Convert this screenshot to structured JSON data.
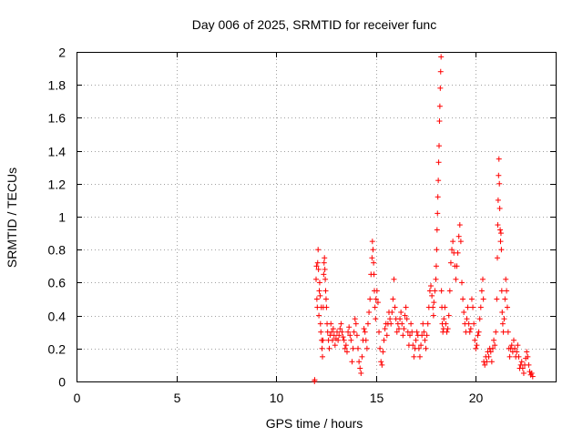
{
  "chart_data": {
    "type": "scatter",
    "title": "Day 006 of 2025, SRMTID for receiver func",
    "xlabel": "GPS time / hours",
    "ylabel": "SRMTID / TECUs",
    "xlim": [
      0,
      24
    ],
    "ylim": [
      0,
      2
    ],
    "xticks": [
      0,
      5,
      10,
      15,
      20
    ],
    "xtick_labels": [
      "0",
      "5",
      "10",
      "15",
      "20"
    ],
    "yticks": [
      0,
      0.2,
      0.4,
      0.6,
      0.8,
      1,
      1.2,
      1.4,
      1.6,
      1.8,
      2
    ],
    "ytick_labels": [
      "0",
      "0.2",
      "0.4",
      "0.6",
      "0.8",
      "1",
      "1.2",
      "1.4",
      "1.6",
      "1.8",
      "2"
    ],
    "grid": true,
    "marker": "plus",
    "color": "#ff0000",
    "series": [
      {
        "name": "SRMTID",
        "points": [
          [
            11.92,
            0.0
          ],
          [
            11.93,
            0.01
          ],
          [
            12.0,
            0.62
          ],
          [
            12.02,
            0.7
          ],
          [
            12.04,
            0.5
          ],
          [
            12.06,
            0.45
          ],
          [
            12.08,
            0.72
          ],
          [
            12.1,
            0.8
          ],
          [
            12.12,
            0.68
          ],
          [
            12.14,
            0.4
          ],
          [
            12.16,
            0.55
          ],
          [
            12.18,
            0.6
          ],
          [
            12.2,
            0.52
          ],
          [
            12.22,
            0.35
          ],
          [
            12.24,
            0.3
          ],
          [
            12.26,
            0.45
          ],
          [
            12.28,
            0.25
          ],
          [
            12.3,
            0.2
          ],
          [
            12.32,
            0.15
          ],
          [
            12.34,
            0.25
          ],
          [
            12.36,
            0.45
          ],
          [
            12.38,
            0.65
          ],
          [
            12.4,
            0.72
          ],
          [
            12.42,
            0.75
          ],
          [
            12.44,
            0.68
          ],
          [
            12.46,
            0.62
          ],
          [
            12.48,
            0.55
          ],
          [
            12.5,
            0.5
          ],
          [
            12.52,
            0.45
          ],
          [
            12.55,
            0.35
          ],
          [
            12.58,
            0.3
          ],
          [
            12.62,
            0.25
          ],
          [
            12.66,
            0.2
          ],
          [
            12.7,
            0.28
          ],
          [
            12.74,
            0.35
          ],
          [
            12.78,
            0.3
          ],
          [
            12.82,
            0.25
          ],
          [
            12.86,
            0.32
          ],
          [
            12.9,
            0.28
          ],
          [
            12.95,
            0.22
          ],
          [
            13.0,
            0.26
          ],
          [
            13.05,
            0.3
          ],
          [
            13.1,
            0.25
          ],
          [
            13.15,
            0.28
          ],
          [
            13.2,
            0.32
          ],
          [
            13.25,
            0.35
          ],
          [
            13.3,
            0.3
          ],
          [
            13.35,
            0.27
          ],
          [
            13.4,
            0.25
          ],
          [
            13.45,
            0.2
          ],
          [
            13.5,
            0.22
          ],
          [
            13.55,
            0.18
          ],
          [
            13.6,
            0.3
          ],
          [
            13.65,
            0.33
          ],
          [
            13.7,
            0.28
          ],
          [
            13.75,
            0.25
          ],
          [
            13.8,
            0.12
          ],
          [
            13.85,
            0.2
          ],
          [
            13.9,
            0.3
          ],
          [
            13.95,
            0.38
          ],
          [
            14.0,
            0.35
          ],
          [
            14.05,
            0.28
          ],
          [
            14.1,
            0.2
          ],
          [
            14.15,
            0.12
          ],
          [
            14.2,
            0.08
          ],
          [
            14.25,
            0.05
          ],
          [
            14.3,
            0.15
          ],
          [
            14.35,
            0.25
          ],
          [
            14.4,
            0.32
          ],
          [
            14.45,
            0.3
          ],
          [
            14.5,
            0.25
          ],
          [
            14.55,
            0.2
          ],
          [
            14.6,
            0.35
          ],
          [
            14.65,
            0.42
          ],
          [
            14.7,
            0.5
          ],
          [
            14.75,
            0.65
          ],
          [
            14.8,
            0.75
          ],
          [
            14.82,
            0.85
          ],
          [
            14.85,
            0.8
          ],
          [
            14.88,
            0.72
          ],
          [
            14.9,
            0.65
          ],
          [
            14.92,
            0.55
          ],
          [
            14.95,
            0.45
          ],
          [
            14.98,
            0.38
          ],
          [
            15.0,
            0.5
          ],
          [
            15.05,
            0.55
          ],
          [
            15.1,
            0.48
          ],
          [
            15.15,
            0.3
          ],
          [
            15.2,
            0.2
          ],
          [
            15.25,
            0.12
          ],
          [
            15.3,
            0.1
          ],
          [
            15.35,
            0.18
          ],
          [
            15.4,
            0.25
          ],
          [
            15.45,
            0.32
          ],
          [
            15.5,
            0.35
          ],
          [
            15.55,
            0.28
          ],
          [
            15.6,
            0.35
          ],
          [
            15.65,
            0.42
          ],
          [
            15.7,
            0.38
          ],
          [
            15.75,
            0.35
          ],
          [
            15.8,
            0.42
          ],
          [
            15.85,
            0.5
          ],
          [
            15.9,
            0.62
          ],
          [
            15.95,
            0.45
          ],
          [
            16.0,
            0.38
          ],
          [
            16.05,
            0.3
          ],
          [
            16.1,
            0.35
          ],
          [
            16.15,
            0.32
          ],
          [
            16.2,
            0.38
          ],
          [
            16.25,
            0.42
          ],
          [
            16.3,
            0.35
          ],
          [
            16.35,
            0.28
          ],
          [
            16.4,
            0.32
          ],
          [
            16.45,
            0.4
          ],
          [
            16.5,
            0.45
          ],
          [
            16.55,
            0.38
          ],
          [
            16.6,
            0.3
          ],
          [
            16.65,
            0.22
          ],
          [
            16.7,
            0.28
          ],
          [
            16.75,
            0.35
          ],
          [
            16.8,
            0.3
          ],
          [
            16.85,
            0.22
          ],
          [
            16.9,
            0.15
          ],
          [
            16.95,
            0.2
          ],
          [
            17.0,
            0.25
          ],
          [
            17.05,
            0.3
          ],
          [
            17.1,
            0.28
          ],
          [
            17.15,
            0.2
          ],
          [
            17.2,
            0.15
          ],
          [
            17.25,
            0.22
          ],
          [
            17.3,
            0.28
          ],
          [
            17.35,
            0.35
          ],
          [
            17.4,
            0.3
          ],
          [
            17.45,
            0.25
          ],
          [
            17.5,
            0.2
          ],
          [
            17.55,
            0.28
          ],
          [
            17.6,
            0.35
          ],
          [
            17.65,
            0.45
          ],
          [
            17.7,
            0.55
          ],
          [
            17.75,
            0.58
          ],
          [
            17.8,
            0.52
          ],
          [
            17.85,
            0.45
          ],
          [
            17.88,
            0.4
          ],
          [
            17.9,
            0.48
          ],
          [
            17.95,
            0.55
          ],
          [
            18.0,
            0.62
          ],
          [
            18.02,
            0.7
          ],
          [
            18.04,
            0.8
          ],
          [
            18.06,
            0.92
          ],
          [
            18.08,
            1.02
          ],
          [
            18.1,
            1.12
          ],
          [
            18.12,
            1.22
          ],
          [
            18.14,
            1.33
          ],
          [
            18.16,
            1.43
          ],
          [
            18.18,
            1.58
          ],
          [
            18.2,
            1.67
          ],
          [
            18.22,
            1.78
          ],
          [
            18.24,
            1.88
          ],
          [
            18.26,
            1.97
          ],
          [
            18.28,
            0.55
          ],
          [
            18.3,
            0.45
          ],
          [
            18.32,
            0.35
          ],
          [
            18.35,
            0.3
          ],
          [
            18.38,
            0.32
          ],
          [
            18.4,
            0.38
          ],
          [
            18.45,
            0.45
          ],
          [
            18.5,
            0.35
          ],
          [
            18.55,
            0.3
          ],
          [
            18.6,
            0.32
          ],
          [
            18.65,
            0.4
          ],
          [
            18.7,
            0.55
          ],
          [
            18.75,
            0.72
          ],
          [
            18.8,
            0.8
          ],
          [
            18.85,
            0.85
          ],
          [
            18.9,
            0.78
          ],
          [
            18.95,
            0.7
          ],
          [
            19.0,
            0.62
          ],
          [
            19.05,
            0.7
          ],
          [
            19.1,
            0.78
          ],
          [
            19.15,
            0.88
          ],
          [
            19.2,
            0.95
          ],
          [
            19.25,
            0.85
          ],
          [
            19.3,
            0.6
          ],
          [
            19.35,
            0.5
          ],
          [
            19.4,
            0.42
          ],
          [
            19.45,
            0.35
          ],
          [
            19.5,
            0.3
          ],
          [
            19.55,
            0.38
          ],
          [
            19.6,
            0.45
          ],
          [
            19.65,
            0.35
          ],
          [
            19.7,
            0.3
          ],
          [
            19.75,
            0.32
          ],
          [
            19.8,
            0.5
          ],
          [
            19.85,
            0.45
          ],
          [
            19.9,
            0.35
          ],
          [
            19.95,
            0.25
          ],
          [
            20.0,
            0.2
          ],
          [
            20.05,
            0.22
          ],
          [
            20.1,
            0.28
          ],
          [
            20.15,
            0.3
          ],
          [
            20.2,
            0.38
          ],
          [
            20.25,
            0.45
          ],
          [
            20.3,
            0.55
          ],
          [
            20.35,
            0.62
          ],
          [
            20.38,
            0.5
          ],
          [
            20.4,
            0.12
          ],
          [
            20.45,
            0.1
          ],
          [
            20.5,
            0.15
          ],
          [
            20.55,
            0.12
          ],
          [
            20.6,
            0.18
          ],
          [
            20.65,
            0.15
          ],
          [
            20.7,
            0.2
          ],
          [
            20.75,
            0.18
          ],
          [
            20.8,
            0.12
          ],
          [
            20.85,
            0.2
          ],
          [
            20.9,
            0.25
          ],
          [
            20.95,
            0.22
          ],
          [
            21.0,
            0.3
          ],
          [
            21.05,
            0.5
          ],
          [
            21.08,
            0.75
          ],
          [
            21.1,
            0.95
          ],
          [
            21.12,
            1.1
          ],
          [
            21.14,
            1.25
          ],
          [
            21.16,
            1.35
          ],
          [
            21.18,
            1.2
          ],
          [
            21.2,
            1.05
          ],
          [
            21.22,
            0.92
          ],
          [
            21.24,
            0.85
          ],
          [
            21.26,
            0.9
          ],
          [
            21.28,
            0.8
          ],
          [
            21.3,
            0.55
          ],
          [
            21.32,
            0.42
          ],
          [
            21.35,
            0.35
          ],
          [
            21.38,
            0.3
          ],
          [
            21.42,
            0.38
          ],
          [
            21.46,
            0.5
          ],
          [
            21.5,
            0.62
          ],
          [
            21.54,
            0.55
          ],
          [
            21.58,
            0.45
          ],
          [
            21.62,
            0.3
          ],
          [
            21.66,
            0.2
          ],
          [
            21.7,
            0.15
          ],
          [
            21.75,
            0.2
          ],
          [
            21.8,
            0.22
          ],
          [
            21.85,
            0.18
          ],
          [
            21.9,
            0.25
          ],
          [
            21.95,
            0.2
          ],
          [
            22.0,
            0.15
          ],
          [
            22.05,
            0.18
          ],
          [
            22.1,
            0.22
          ],
          [
            22.15,
            0.15
          ],
          [
            22.2,
            0.08
          ],
          [
            22.25,
            0.1
          ],
          [
            22.3,
            0.12
          ],
          [
            22.35,
            0.08
          ],
          [
            22.4,
            0.05
          ],
          [
            22.45,
            0.1
          ],
          [
            22.5,
            0.14
          ],
          [
            22.55,
            0.18
          ],
          [
            22.6,
            0.15
          ],
          [
            22.65,
            0.1
          ],
          [
            22.7,
            0.06
          ],
          [
            22.75,
            0.04
          ],
          [
            22.8,
            0.05
          ],
          [
            22.85,
            0.03
          ]
        ]
      }
    ]
  }
}
